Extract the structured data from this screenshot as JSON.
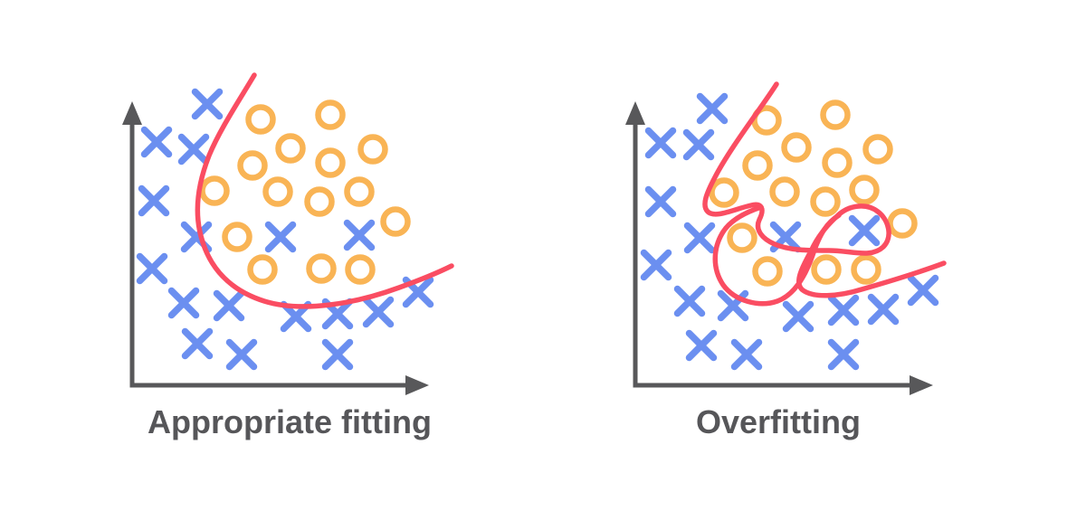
{
  "page": {
    "background": "#ffffff"
  },
  "colors": {
    "blue_x": "#6B8FF0",
    "orange_circle": "#F9B455",
    "boundary_red": "#FA4D62",
    "axis_gray": "#58585A",
    "label_gray": "#565659"
  },
  "chart_data": [
    {
      "type": "scatter",
      "title": "Appropriate fitting",
      "xlabel": "",
      "ylabel": "",
      "grid": false,
      "legend": "none",
      "axes": {
        "origin": [
          146,
          426
        ],
        "y_tip": [
          146,
          112
        ],
        "x_tip": [
          474,
          426
        ]
      },
      "series": [
        {
          "name": "blue-x-class",
          "marker": "x",
          "color_key": "blue_x",
          "points": [
            [
              229,
              115
            ],
            [
              173,
              157
            ],
            [
              214,
              165
            ],
            [
              170,
              222
            ],
            [
              217,
              262
            ],
            [
              168,
              297
            ],
            [
              310,
              262
            ],
            [
              397,
              260
            ],
            [
              203,
              335
            ],
            [
              253,
              338
            ],
            [
              327,
              350
            ],
            [
              373,
              347
            ],
            [
              418,
              345
            ],
            [
              462,
              323
            ],
            [
              218,
              380
            ],
            [
              267,
              392
            ],
            [
              373,
              392
            ]
          ]
        },
        {
          "name": "orange-circle-class",
          "marker": "circle",
          "color_key": "orange_circle",
          "points": [
            [
              288,
              132
            ],
            [
              365,
              127
            ],
            [
              321,
              164
            ],
            [
              412,
              165
            ],
            [
              279,
              183
            ],
            [
              365,
              180
            ],
            [
              237,
              211
            ],
            [
              307,
              212
            ],
            [
              353,
              223
            ],
            [
              397,
              212
            ],
            [
              437,
              245
            ],
            [
              262,
              262
            ],
            [
              290,
              298
            ],
            [
              355,
              297
            ],
            [
              398,
              298
            ]
          ]
        }
      ],
      "boundary_paths": [
        "M 281,83 C 265,110 243,143 231,172 C 220,200 214,231 222,261 C 231,296 254,321 292,333 C 334,346 392,336 441,318 C 463,310 483,302 499,294"
      ]
    },
    {
      "type": "scatter",
      "title": "Overfitting",
      "xlabel": "",
      "ylabel": "",
      "grid": false,
      "legend": "none",
      "axes": {
        "origin": [
          702,
          426
        ],
        "y_tip": [
          702,
          112
        ],
        "x_tip": [
          1031,
          426
        ]
      },
      "series": [
        {
          "name": "blue-x-class",
          "marker": "x",
          "color_key": "blue_x",
          "points": [
            [
              787,
              120
            ],
            [
              730,
              158
            ],
            [
              772,
              160
            ],
            [
              730,
              223
            ],
            [
              773,
              263
            ],
            [
              868,
              262
            ],
            [
              955,
              255
            ],
            [
              725,
              293
            ],
            [
              762,
              333
            ],
            [
              810,
              338
            ],
            [
              882,
              350
            ],
            [
              932,
              343
            ],
            [
              976,
              342
            ],
            [
              1020,
              321
            ],
            [
              775,
              382
            ],
            [
              825,
              392
            ],
            [
              932,
              392
            ]
          ]
        },
        {
          "name": "orange-circle-class",
          "marker": "circle",
          "color_key": "orange_circle",
          "points": [
            [
              847,
              133
            ],
            [
              923,
              127
            ],
            [
              880,
              163
            ],
            [
              970,
              165
            ],
            [
              837,
              183
            ],
            [
              925,
              180
            ],
            [
              800,
              213
            ],
            [
              867,
              212
            ],
            [
              912,
              223
            ],
            [
              955,
              210
            ],
            [
              997,
              247
            ],
            [
              820,
              263
            ],
            [
              848,
              300
            ],
            [
              913,
              298
            ],
            [
              957,
              298
            ]
          ]
        }
      ],
      "boundary_paths": [
        "M 858,93 C 843,117 807,163 790,196 C 781,213 775,227 782,234 C 790,242 812,231 830,227 C 842,224 845,231 839,243 C 834,254 842,264 856,270 C 872,277 893,277 916,277 C 941,277 962,286 976,273 C 987,262 982,243 970,234 C 957,224 938,227 926,238 C 913,250 903,262 896,278 C 886,296 878,312 886,320 C 898,330 926,328 952,320 C 987,310 1016,301 1043,291",
        "M 841,229 C 823,235 806,244 798,258 C 788,275 787,297 799,315 C 812,333 839,340 859,333 C 878,326 890,305 898,282 C 906,258 914,246 927,238"
      ]
    }
  ]
}
